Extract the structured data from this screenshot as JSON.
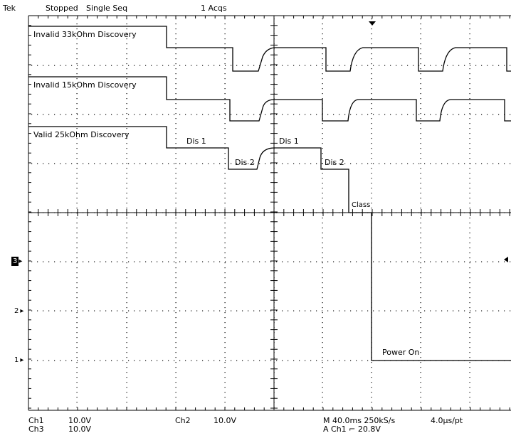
{
  "header": {
    "brand": "Tek",
    "acq_state": "Stopped",
    "acq_mode": "Single Seq",
    "acq_count": "1 Acqs"
  },
  "traces": [
    {
      "label": "Invalid 33kOhm Discovery"
    },
    {
      "label": "Invalid 15kOhm Discovery"
    },
    {
      "label": "Valid 25kOhm Discovery"
    }
  ],
  "annotations": {
    "dis1_a": "Dis 1",
    "dis2_a": "Dis 2",
    "dis1_b": "Dis 1",
    "dis2_b": "Dis 2",
    "class": "Class",
    "power_on": "Power On"
  },
  "channel_markers": [
    "3",
    "2",
    "1"
  ],
  "readout": {
    "ch1_name": "Ch1",
    "ch1_scale": "10.0V",
    "ch2_name": "Ch2",
    "ch2_scale": "10.0V",
    "ch3_name": "Ch3",
    "ch3_scale": "10.0V",
    "timebase": "M 40.0ms 250kS/s",
    "resolution": "4.0µs/pt",
    "trigger": "A  Ch1  ⌐  20.8V"
  },
  "colors": {
    "screen_bg": "#ffffff",
    "trace": "#000000",
    "marker_active_bg": "#000000"
  }
}
